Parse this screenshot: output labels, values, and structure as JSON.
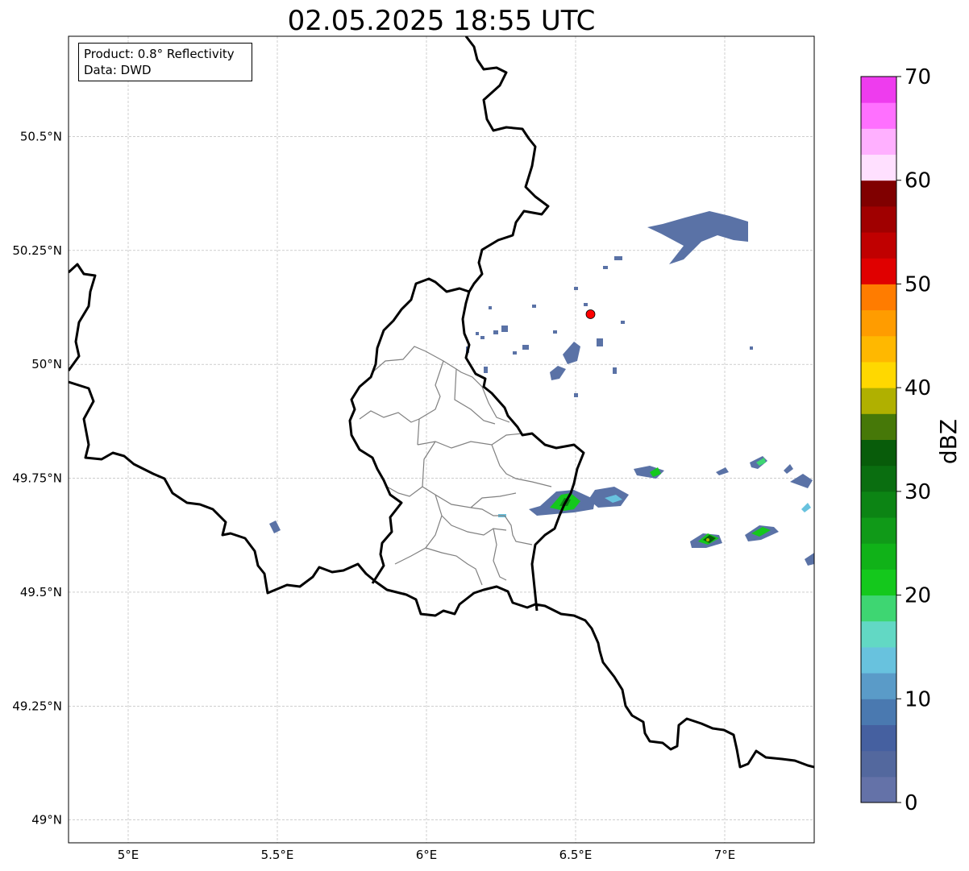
{
  "title": "02.05.2025 18:55 UTC",
  "info_box": {
    "product": "Product: 0.8° Reflectivity",
    "data_source": "Data: DWD"
  },
  "map": {
    "lon_range": [
      4.8,
      7.3
    ],
    "lat_range": [
      48.95,
      50.72
    ],
    "gridlines": true,
    "x_ticks": [
      {
        "value": 5.0,
        "label": "5°E"
      },
      {
        "value": 5.5,
        "label": "5.5°E"
      },
      {
        "value": 6.0,
        "label": "6°E"
      },
      {
        "value": 6.5,
        "label": "6.5°E"
      },
      {
        "value": 7.0,
        "label": "7°E"
      }
    ],
    "y_ticks": [
      {
        "value": 49.0,
        "label": "49°N"
      },
      {
        "value": 49.25,
        "label": "49.25°N"
      },
      {
        "value": 49.5,
        "label": "49.5°N"
      },
      {
        "value": 49.75,
        "label": "49.75°N"
      },
      {
        "value": 50.0,
        "label": "50°N"
      },
      {
        "value": 50.25,
        "label": "50.25°N"
      },
      {
        "value": 50.5,
        "label": "50.5°N"
      }
    ],
    "radar_site": {
      "lon": 6.55,
      "lat": 50.11,
      "color": "#ff0000"
    }
  },
  "colorbar": {
    "label": "dBZ",
    "min": 0,
    "max": 70,
    "ticks": [
      "0",
      "10",
      "20",
      "30",
      "40",
      "50",
      "60",
      "70"
    ],
    "colors": [
      "#6472a8",
      "#53689e",
      "#4560a0",
      "#4a79b0",
      "#5a9bc8",
      "#68c2de",
      "#62d8c4",
      "#3ed672",
      "#14c81c",
      "#10b218",
      "#109a18",
      "#0c8414",
      "#0a6e10",
      "#085c0a",
      "#467808",
      "#b0b000",
      "#ffd800",
      "#ffb800",
      "#ff9c00",
      "#ff7c00",
      "#e00000",
      "#c00000",
      "#a00000",
      "#800000",
      "#ffe0ff",
      "#ffb0ff",
      "#ff70ff",
      "#ee3cee"
    ]
  }
}
